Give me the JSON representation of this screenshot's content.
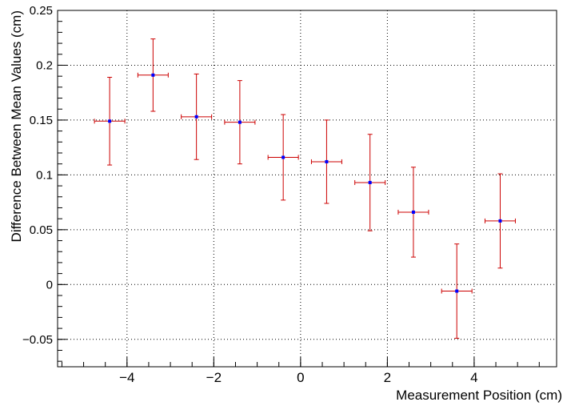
{
  "chart_data": {
    "type": "scatter",
    "title": "",
    "xlabel": "Measurement Position (cm)",
    "ylabel": "Difference Between Mean Values (cm)",
    "xlim": [
      -5.6,
      5.9
    ],
    "ylim": [
      -0.075,
      0.25
    ],
    "x_ticks": [
      -4,
      -2,
      0,
      2,
      4
    ],
    "x_tick_labels": [
      "−4",
      "−2",
      "0",
      "2",
      "4"
    ],
    "y_ticks": [
      -0.05,
      0,
      0.05,
      0.1,
      0.15,
      0.2,
      0.25
    ],
    "y_tick_labels": [
      "−0.05",
      "0",
      "0.05",
      "0.1",
      "0.15",
      "0.2",
      "0.25"
    ],
    "grid": true,
    "legend": "none",
    "marker_color": "#0000ff",
    "error_bar_color": "#cc0000",
    "series": [
      {
        "x": [
          -4.4,
          -3.4,
          -2.4,
          -1.4,
          -0.4,
          0.6,
          1.6,
          2.6,
          3.6,
          4.6
        ],
        "y": [
          0.149,
          0.191,
          0.153,
          0.148,
          0.116,
          0.112,
          0.093,
          0.066,
          -0.006,
          0.058
        ],
        "x_err": [
          0.35,
          0.35,
          0.35,
          0.35,
          0.35,
          0.35,
          0.35,
          0.35,
          0.35,
          0.35
        ],
        "y_err": [
          0.04,
          0.033,
          0.039,
          0.038,
          0.039,
          0.038,
          0.044,
          0.041,
          0.043,
          0.043
        ]
      }
    ]
  }
}
